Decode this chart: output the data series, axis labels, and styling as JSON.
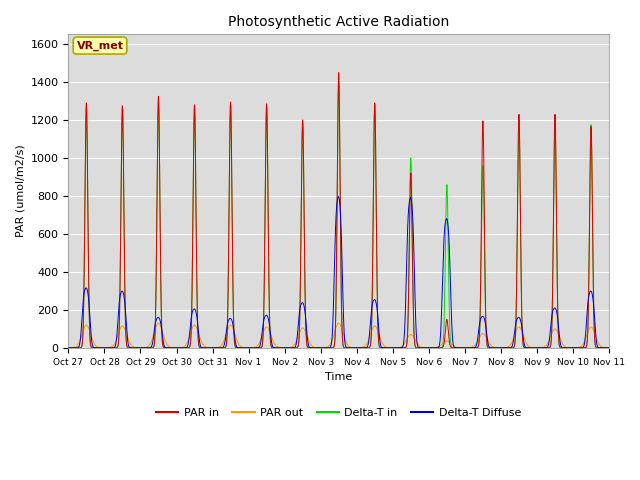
{
  "title": "Photosynthetic Active Radiation",
  "ylabel": "PAR (umol/m2/s)",
  "xlabel": "Time",
  "annotation": "VR_met",
  "ylim": [
    0,
    1650
  ],
  "yticks": [
    0,
    200,
    400,
    600,
    800,
    1000,
    1200,
    1400,
    1600
  ],
  "x_labels": [
    "Oct 27",
    "Oct 28",
    "Oct 29",
    "Oct 30",
    "Oct 31",
    "Nov 1",
    "Nov 2",
    "Nov 3",
    "Nov 4",
    "Nov 5",
    "Nov 6",
    "Nov 7",
    "Nov 8",
    "Nov 9",
    "Nov 10",
    "Nov 11"
  ],
  "colors": {
    "PAR_in": "#dd0000",
    "PAR_out": "#ff9900",
    "Delta_T_in": "#00dd00",
    "Delta_T_Diffuse": "#0000dd"
  },
  "legend_labels": [
    "PAR in",
    "PAR out",
    "Delta-T in",
    "Delta-T Diffuse"
  ],
  "background_color": "#dcdcdc",
  "annotation_box_color": "#ffffaa",
  "annotation_text_color": "#880000",
  "annotation_edge_color": "#aaaa00"
}
